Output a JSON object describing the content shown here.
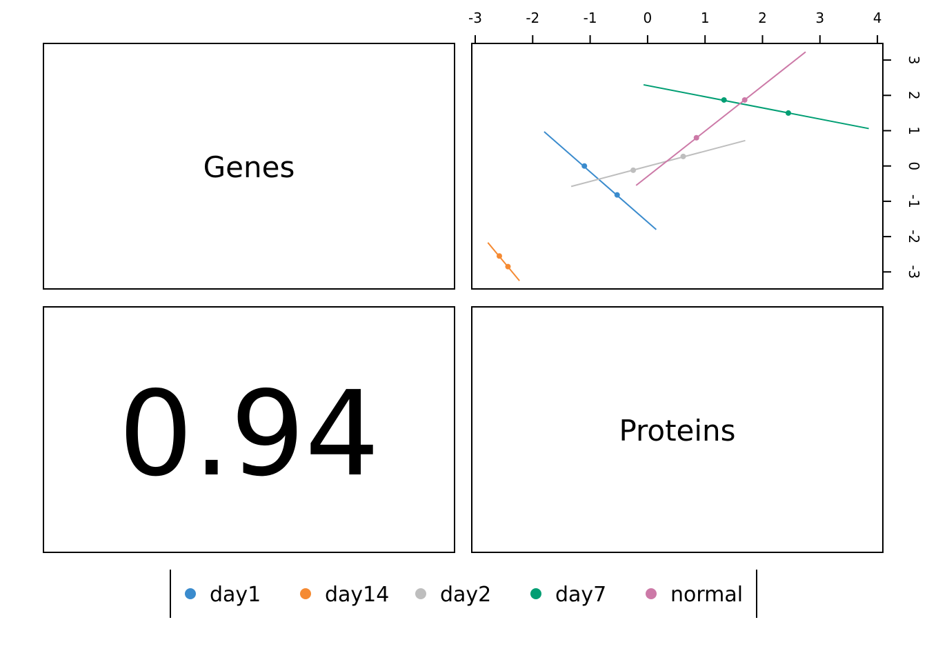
{
  "chart_data": {
    "type": "scatter",
    "variables": [
      "Genes",
      "Proteins"
    ],
    "correlation_label": "0.94",
    "x_ticks": [
      "-3",
      "-2",
      "-1",
      "0",
      "1",
      "2",
      "3",
      "4"
    ],
    "y_ticks": [
      "-3",
      "-2",
      "-1",
      "0",
      "1",
      "2",
      "3"
    ],
    "xlim": [
      -3,
      4
    ],
    "ylim": [
      -3.4,
      3.55
    ],
    "legend_position": "bottom",
    "series": [
      {
        "name": "day1",
        "color": "#3A8BCD",
        "points": [
          {
            "x": -1.1,
            "y": 0.0
          },
          {
            "x": -0.53,
            "y": -0.82
          }
        ],
        "line": {
          "x": [
            -1.8,
            0.15
          ],
          "y": [
            0.97,
            -1.8
          ]
        }
      },
      {
        "name": "day14",
        "color": "#F58A32",
        "points": [
          {
            "x": -2.58,
            "y": -2.55
          },
          {
            "x": -2.43,
            "y": -2.85
          }
        ],
        "line": {
          "x": [
            -2.78,
            -2.23
          ],
          "y": [
            -2.17,
            -3.25
          ]
        }
      },
      {
        "name": "day2",
        "color": "#BEBEBE",
        "points": [
          {
            "x": -0.25,
            "y": -0.12
          },
          {
            "x": 0.62,
            "y": 0.27
          }
        ],
        "line": {
          "x": [
            -1.33,
            1.7
          ],
          "y": [
            -0.58,
            0.72
          ]
        }
      },
      {
        "name": "day7",
        "color": "#009E73",
        "points": [
          {
            "x": 1.33,
            "y": 1.87
          },
          {
            "x": 2.45,
            "y": 1.5
          }
        ],
        "line": {
          "x": [
            -0.07,
            3.85
          ],
          "y": [
            2.3,
            1.06
          ]
        }
      },
      {
        "name": "normal",
        "color": "#CC79A7",
        "points": [
          {
            "x": 0.85,
            "y": 0.8
          },
          {
            "x": 1.69,
            "y": 1.87
          }
        ],
        "line": {
          "x": [
            -0.2,
            2.75
          ],
          "y": [
            -0.55,
            3.23
          ]
        }
      }
    ]
  }
}
